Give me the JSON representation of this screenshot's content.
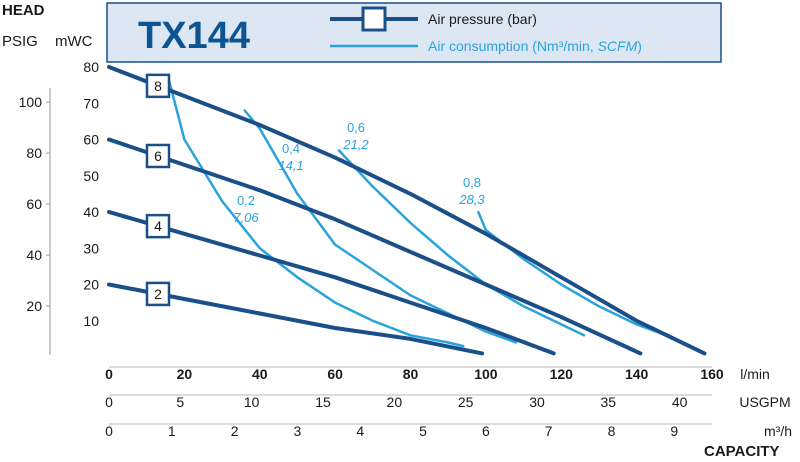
{
  "header": {
    "model": "TX144",
    "head_label": "HEAD",
    "psig_label": "PSIG",
    "mwc_label": "mWC",
    "capacity_label": "CAPACITY"
  },
  "legend": {
    "pressure": "Air pressure (bar)",
    "consumption_prefix": "Air consumption (Nm³/min, ",
    "consumption_italic": "SCFM",
    "consumption_suffix": ")"
  },
  "colors": {
    "pressure_line": "#1b4f8a",
    "consumption_line": "#2aa3dc",
    "title_bg": "#dde7f3",
    "title_text": "#0d5592"
  },
  "chart_data": {
    "type": "line",
    "x_units": {
      "lmin": {
        "label": "l/min",
        "ticks": [
          0,
          20,
          40,
          60,
          80,
          100,
          120,
          140,
          160
        ]
      },
      "usgpm": {
        "label": "USGPM",
        "ticks": [
          0,
          5,
          10,
          15,
          20,
          25,
          30,
          35,
          40
        ]
      },
      "m3h": {
        "label": "m³/h",
        "ticks": [
          0,
          1,
          2,
          3,
          4,
          5,
          6,
          7,
          8,
          9
        ]
      }
    },
    "y_units": {
      "mwc": {
        "label": "mWC",
        "ticks": [
          10,
          20,
          30,
          40,
          50,
          60,
          70,
          80
        ]
      },
      "psig": {
        "label": "PSIG",
        "ticks": [
          20,
          40,
          60,
          80,
          100
        ]
      }
    },
    "xlim": [
      0,
      160
    ],
    "ylim": [
      0,
      80
    ],
    "pressure_series": [
      {
        "label": "8",
        "points": [
          [
            0,
            80
          ],
          [
            20,
            72
          ],
          [
            40,
            64
          ],
          [
            60,
            55
          ],
          [
            80,
            45
          ],
          [
            100,
            34
          ],
          [
            120,
            22
          ],
          [
            140,
            10
          ],
          [
            158,
            1
          ]
        ]
      },
      {
        "label": "6",
        "points": [
          [
            0,
            60
          ],
          [
            20,
            53
          ],
          [
            40,
            46
          ],
          [
            60,
            38
          ],
          [
            80,
            29
          ],
          [
            100,
            20
          ],
          [
            120,
            11
          ],
          [
            141,
            1
          ]
        ]
      },
      {
        "label": "4",
        "points": [
          [
            0,
            40
          ],
          [
            20,
            34
          ],
          [
            40,
            28
          ],
          [
            60,
            22
          ],
          [
            80,
            15
          ],
          [
            100,
            8
          ],
          [
            118,
            1
          ]
        ]
      },
      {
        "label": "2",
        "points": [
          [
            0,
            20
          ],
          [
            20,
            16
          ],
          [
            40,
            12
          ],
          [
            60,
            8
          ],
          [
            80,
            5
          ],
          [
            99,
            1
          ]
        ]
      }
    ],
    "consumption_series": [
      {
        "label": "0,2",
        "label_scfm": "7,06",
        "points": [
          [
            16,
            76
          ],
          [
            20,
            60
          ],
          [
            30,
            43
          ],
          [
            40,
            30
          ],
          [
            50,
            22
          ],
          [
            60,
            15
          ],
          [
            70,
            10
          ],
          [
            80,
            6
          ],
          [
            90,
            4
          ],
          [
            94,
            3
          ]
        ]
      },
      {
        "label": "0,4",
        "label_scfm": "14,1",
        "points": [
          [
            36,
            68
          ],
          [
            40,
            63
          ],
          [
            50,
            45
          ],
          [
            60,
            31
          ],
          [
            70,
            24
          ],
          [
            80,
            17
          ],
          [
            90,
            12
          ],
          [
            100,
            7
          ],
          [
            108,
            4
          ]
        ]
      },
      {
        "label": "0,6",
        "label_scfm": "21,2",
        "points": [
          [
            61,
            57
          ],
          [
            70,
            47
          ],
          [
            80,
            37
          ],
          [
            90,
            28
          ],
          [
            100,
            20
          ],
          [
            110,
            14
          ],
          [
            120,
            9
          ],
          [
            126,
            6
          ]
        ]
      },
      {
        "label": "0,8",
        "label_scfm": "28,3",
        "points": [
          [
            98,
            40
          ],
          [
            100,
            35
          ],
          [
            110,
            27
          ],
          [
            120,
            20
          ],
          [
            130,
            14
          ],
          [
            140,
            9
          ],
          [
            148,
            6
          ]
        ]
      }
    ]
  }
}
